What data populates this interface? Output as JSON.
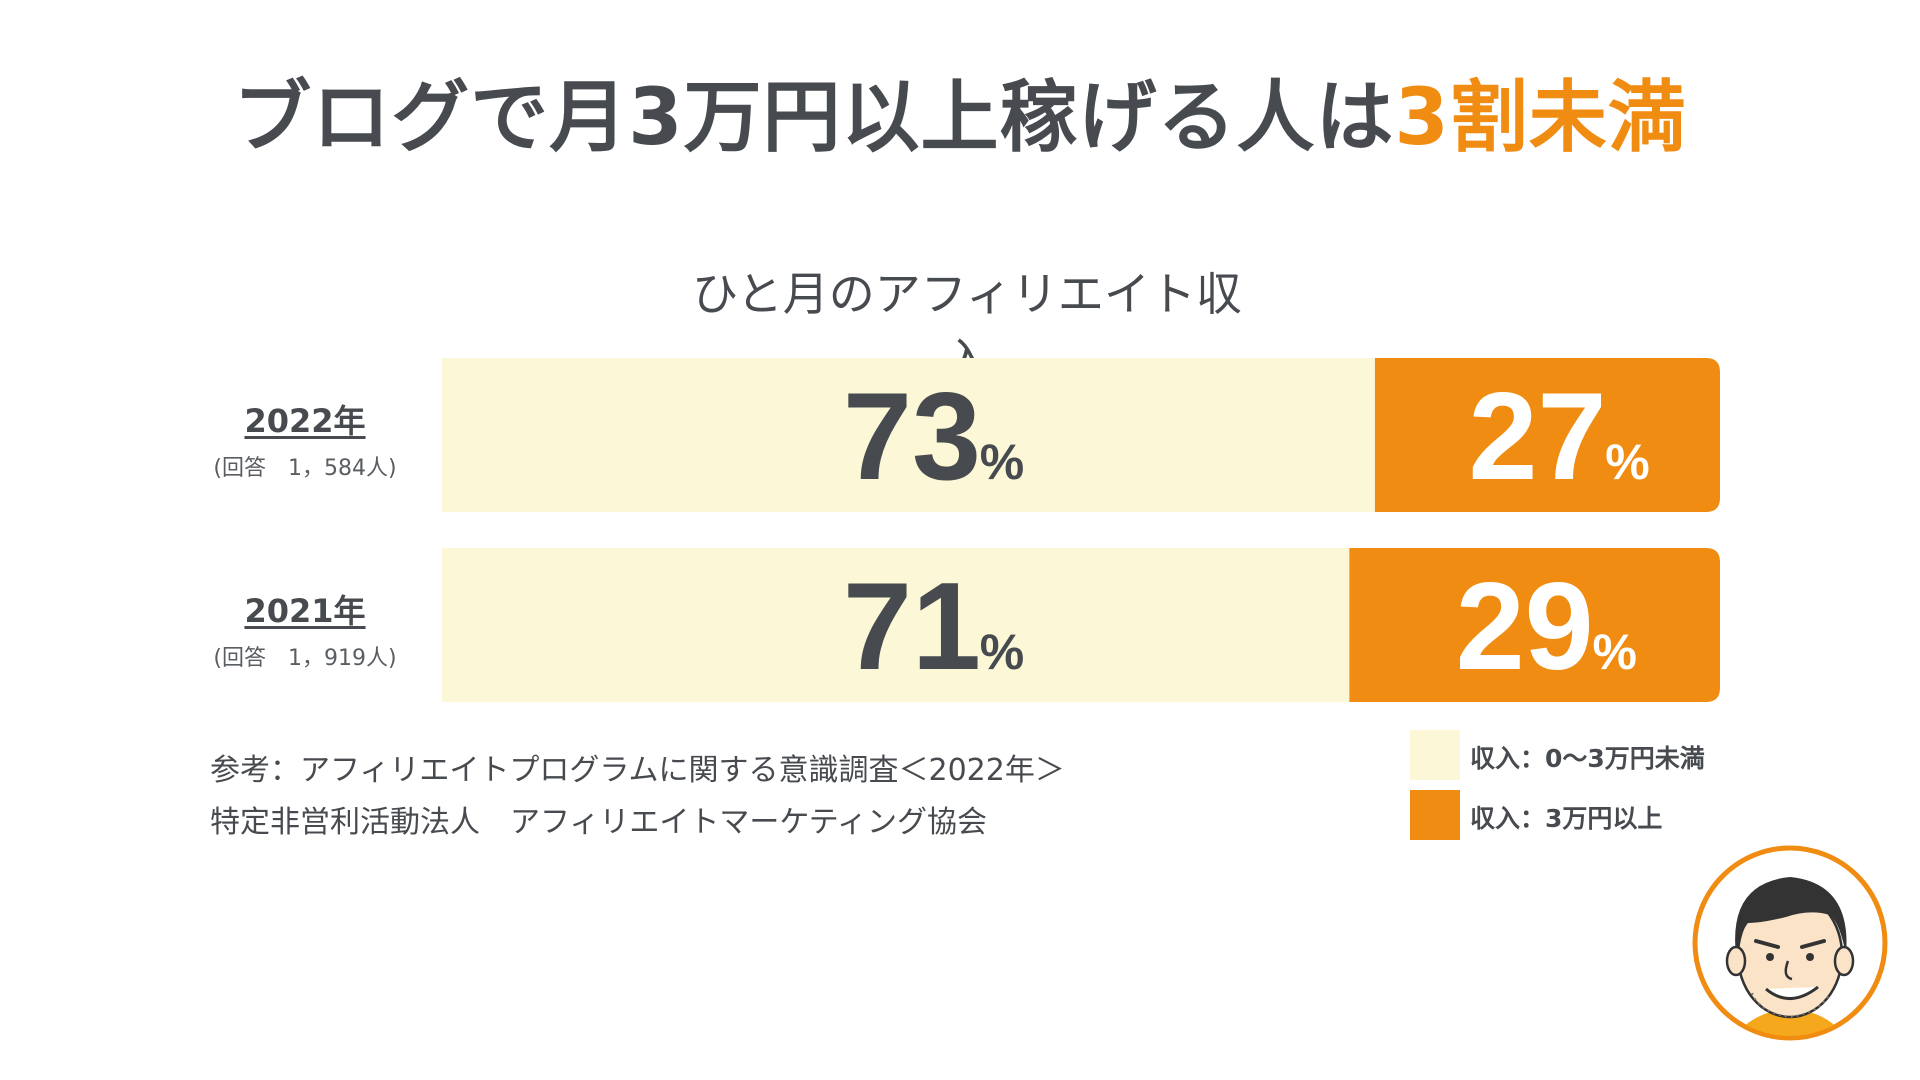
{
  "title": {
    "main": "ブログで月3万円以上稼げる人は",
    "accent": "3割未満"
  },
  "colors": {
    "low": "#fcf8d7",
    "high": "#f08c12",
    "text": "#474b4f",
    "accent": "#f08c12"
  },
  "chart_data": {
    "type": "bar",
    "stacked": true,
    "orientation": "horizontal",
    "title": "ひと月のアフィリエイト収入",
    "categories": [
      "2022年",
      "2021年"
    ],
    "responses": [
      "(回答　1，584人)",
      "(回答　1，919人)"
    ],
    "series": [
      {
        "name": "収入：0〜3万円未満",
        "values": [
          73,
          71
        ],
        "color": "#fcf8d7"
      },
      {
        "name": "収入：3万円以上",
        "values": [
          27,
          29
        ],
        "color": "#f08c12"
      }
    ],
    "unit": "%",
    "xlim": [
      0,
      100
    ]
  },
  "source": {
    "line1": "参考：アフィリエイトプログラムに関する意識調査＜2022年＞",
    "line2": "特定非営利活動法人　アフィリエイトマーケティング協会"
  }
}
